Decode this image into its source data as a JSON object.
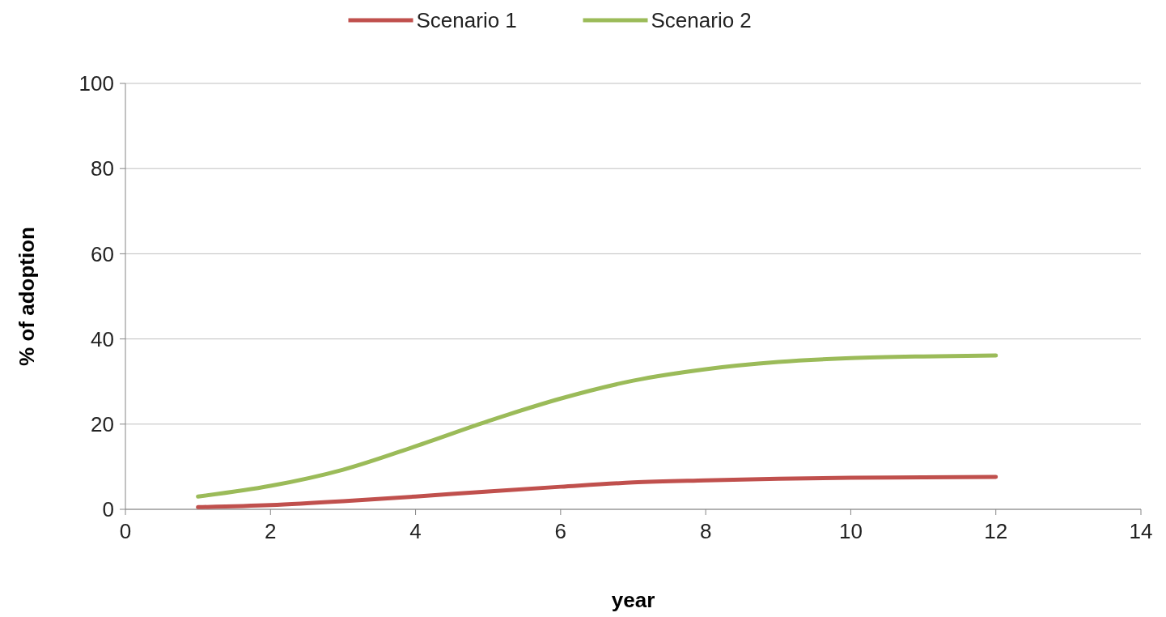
{
  "chart_data": {
    "type": "line",
    "xlabel": "year",
    "ylabel": "% of adoption",
    "x": [
      1,
      2,
      3,
      4,
      5,
      6,
      7,
      8,
      9,
      10,
      11,
      12
    ],
    "series": [
      {
        "name": "Scenario 1",
        "color": "#c0504d",
        "values": [
          0.5,
          1.0,
          1.9,
          3.0,
          4.2,
          5.3,
          6.3,
          6.8,
          7.2,
          7.4,
          7.5,
          7.6
        ]
      },
      {
        "name": "Scenario 2",
        "color": "#9bbb59",
        "values": [
          3.0,
          5.5,
          9.3,
          14.8,
          20.7,
          26.0,
          30.2,
          32.9,
          34.6,
          35.5,
          35.9,
          36.1
        ]
      }
    ],
    "xlim": [
      0,
      14
    ],
    "xticks": [
      0,
      2,
      4,
      6,
      8,
      10,
      12,
      14
    ],
    "ylim": [
      0,
      100
    ],
    "yticks": [
      0,
      20,
      40,
      60,
      80,
      100
    ],
    "grid": "y",
    "legend": "top",
    "marker": "none",
    "line_style": "solid"
  }
}
